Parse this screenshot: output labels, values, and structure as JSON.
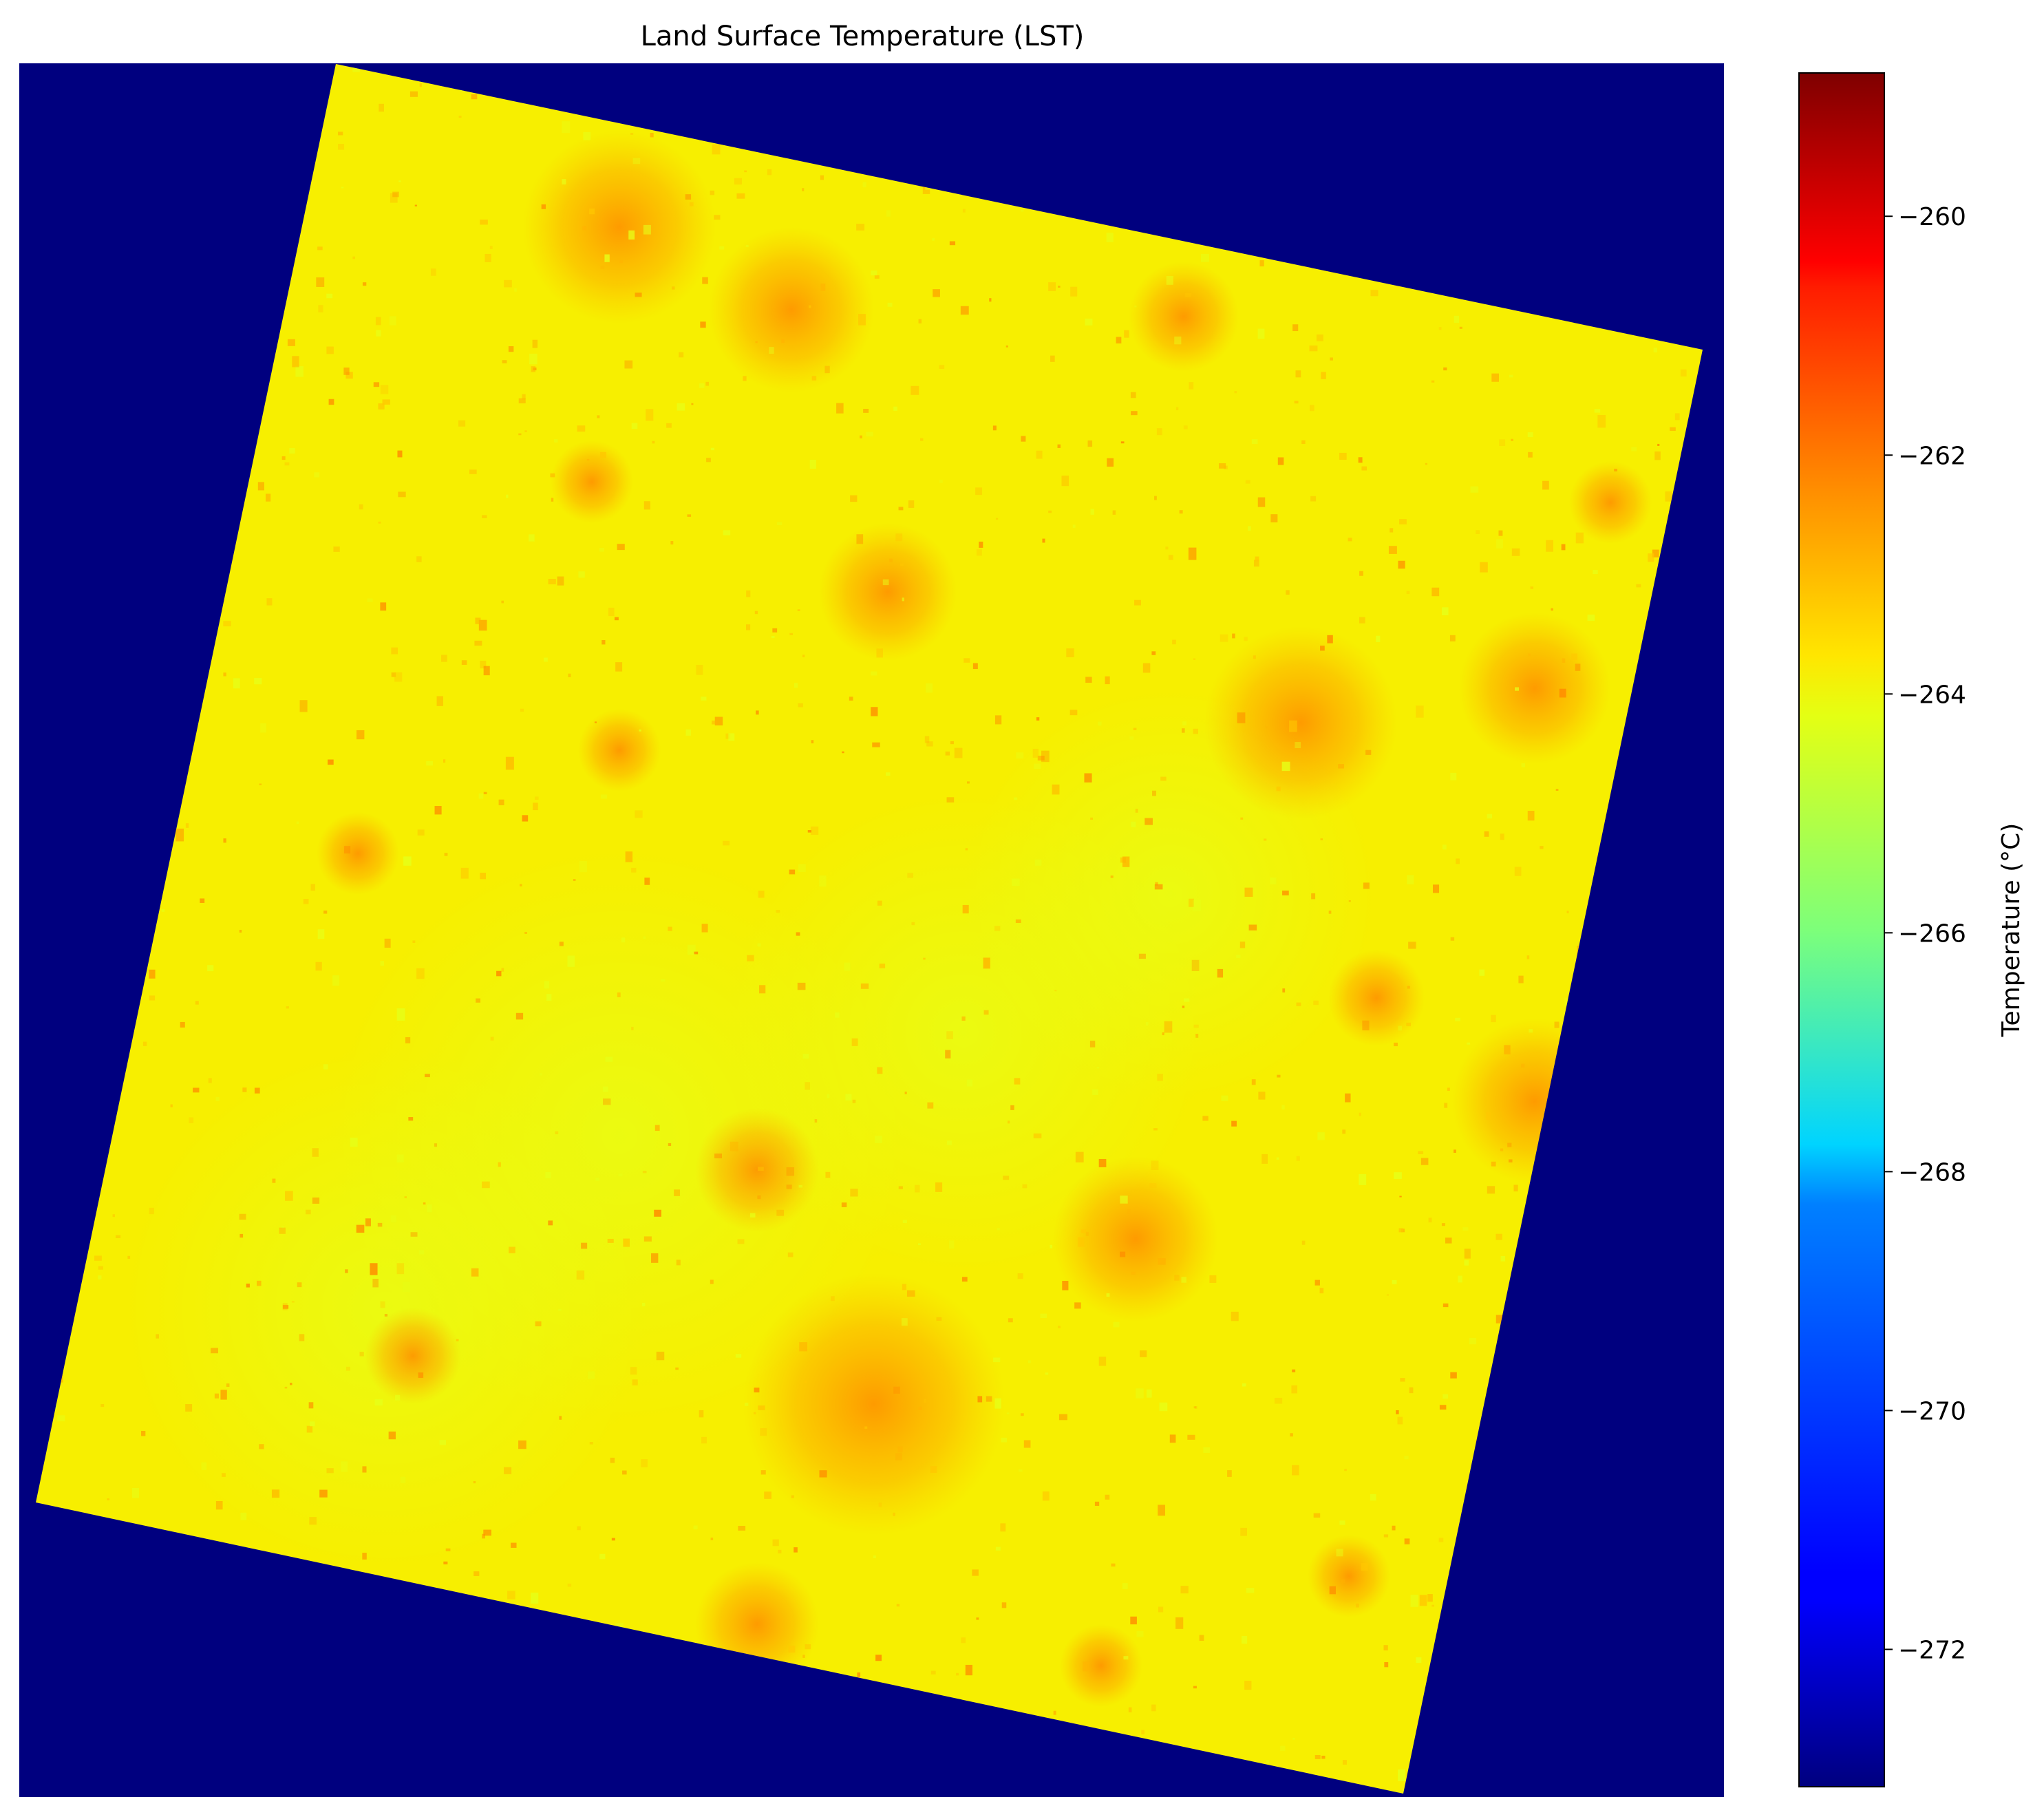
{
  "chart_data": {
    "type": "heatmap",
    "title": "Land Surface Temperature (LST)",
    "colormap": "jet",
    "colorbar": {
      "label": "Temperature (°C)",
      "range": [
        -273.15,
        -258.8
      ],
      "ticks": [
        -260,
        -262,
        -264,
        -266,
        -268,
        -270,
        -272
      ],
      "tick_labels": [
        "−260",
        "−262",
        "−264",
        "−266",
        "−268",
        "−270",
        "−272"
      ]
    },
    "background_value": -273.15,
    "scene_value_range": [
      -264.5,
      -259.5
    ],
    "typical_scene_value": -263.8,
    "axes_visible": false,
    "grid": false
  },
  "colors": {
    "background": "#00007f",
    "scene_base": "#f7ef00",
    "scene_warm": "#ffb400",
    "scene_hot": "#ff8c00",
    "scene_cool": "#e6ff18"
  }
}
